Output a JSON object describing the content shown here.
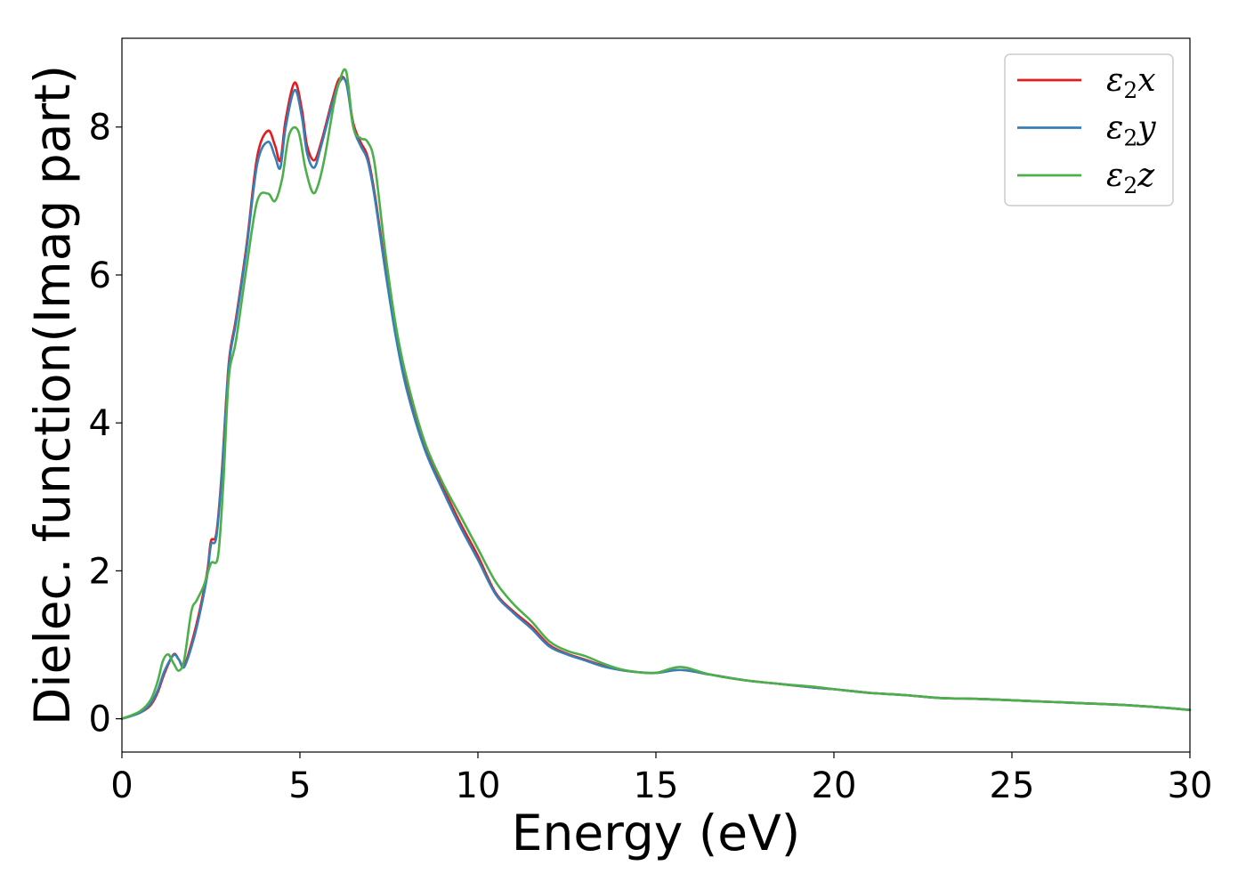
{
  "chart_data": {
    "type": "line",
    "xlabel": "Energy (eV)",
    "ylabel": "Dielec. function(Imag part)",
    "xlim": [
      0,
      30
    ],
    "ylim": [
      -0.45,
      9.2
    ],
    "xticks": [
      0,
      5,
      10,
      15,
      20,
      25,
      30
    ],
    "yticks": [
      0,
      2,
      4,
      6,
      8
    ],
    "xtick_labels": [
      "0",
      "5",
      "10",
      "15",
      "20",
      "25",
      "30"
    ],
    "ytick_labels": [
      "0",
      "2",
      "4",
      "6",
      "8"
    ],
    "grid": false,
    "legend_position": "top-right",
    "series": [
      {
        "name": "ε2x",
        "legend": {
          "base": "ε",
          "sub": "2",
          "tail": "x"
        },
        "color": "#e41a1c",
        "x": [
          0,
          0.5,
          0.8,
          1.0,
          1.2,
          1.45,
          1.6,
          1.75,
          2.0,
          2.2,
          2.4,
          2.5,
          2.65,
          2.8,
          3.0,
          3.2,
          3.5,
          3.8,
          4.1,
          4.3,
          4.45,
          4.6,
          4.85,
          5.05,
          5.2,
          5.4,
          5.6,
          5.9,
          6.1,
          6.3,
          6.5,
          6.7,
          6.9,
          7.1,
          7.4,
          7.7,
          8.0,
          8.5,
          9.0,
          9.5,
          10.0,
          10.5,
          11.0,
          11.5,
          12.0,
          12.5,
          13.0,
          13.5,
          14.0,
          14.5,
          15.0,
          15.7,
          16.5,
          17.5,
          18.5,
          19.5,
          20.0,
          21.0,
          22.0,
          23.0,
          24.0,
          25.0,
          26.0,
          27.0,
          28.0,
          29.0,
          30.0
        ],
        "y": [
          0,
          0.08,
          0.18,
          0.35,
          0.62,
          0.87,
          0.8,
          0.72,
          1.1,
          1.5,
          2.0,
          2.4,
          2.5,
          3.3,
          4.8,
          5.4,
          6.4,
          7.6,
          7.95,
          7.75,
          7.55,
          8.1,
          8.6,
          8.25,
          7.75,
          7.55,
          7.8,
          8.35,
          8.65,
          8.6,
          8.05,
          7.8,
          7.6,
          7.1,
          6.1,
          5.2,
          4.5,
          3.7,
          3.15,
          2.65,
          2.2,
          1.7,
          1.45,
          1.25,
          1.0,
          0.88,
          0.8,
          0.72,
          0.66,
          0.63,
          0.62,
          0.66,
          0.6,
          0.52,
          0.47,
          0.42,
          0.4,
          0.35,
          0.32,
          0.28,
          0.27,
          0.25,
          0.23,
          0.21,
          0.19,
          0.16,
          0.12
        ]
      },
      {
        "name": "ε2y",
        "legend": {
          "base": "ε",
          "sub": "2",
          "tail": "y"
        },
        "color": "#377eb8",
        "x": [
          0,
          0.5,
          0.8,
          1.0,
          1.2,
          1.45,
          1.6,
          1.75,
          2.0,
          2.2,
          2.4,
          2.5,
          2.65,
          2.8,
          3.0,
          3.2,
          3.5,
          3.8,
          4.1,
          4.3,
          4.45,
          4.6,
          4.85,
          5.05,
          5.2,
          5.4,
          5.6,
          5.9,
          6.1,
          6.3,
          6.5,
          6.7,
          6.9,
          7.1,
          7.4,
          7.7,
          8.0,
          8.5,
          9.0,
          9.5,
          10.0,
          10.5,
          11.0,
          11.5,
          12.0,
          12.5,
          13.0,
          13.5,
          14.0,
          14.5,
          15.0,
          15.7,
          16.5,
          17.5,
          18.5,
          19.5,
          20.0,
          21.0,
          22.0,
          23.0,
          24.0,
          25.0,
          26.0,
          27.0,
          28.0,
          29.0,
          30.0
        ],
        "y": [
          0,
          0.08,
          0.2,
          0.38,
          0.65,
          0.86,
          0.8,
          0.7,
          1.05,
          1.45,
          1.95,
          2.35,
          2.45,
          3.25,
          4.75,
          5.35,
          6.35,
          7.5,
          7.8,
          7.6,
          7.45,
          8.0,
          8.5,
          8.15,
          7.65,
          7.45,
          7.75,
          8.3,
          8.6,
          8.6,
          8.0,
          7.75,
          7.55,
          7.05,
          6.05,
          5.15,
          4.45,
          3.65,
          3.1,
          2.6,
          2.15,
          1.68,
          1.43,
          1.22,
          0.98,
          0.87,
          0.79,
          0.71,
          0.66,
          0.63,
          0.62,
          0.66,
          0.6,
          0.52,
          0.47,
          0.42,
          0.4,
          0.35,
          0.32,
          0.28,
          0.27,
          0.25,
          0.23,
          0.21,
          0.19,
          0.16,
          0.12
        ]
      },
      {
        "name": "ε2z",
        "legend": {
          "base": "ε",
          "sub": "2",
          "tail": "z"
        },
        "color": "#4daf4a",
        "x": [
          0,
          0.5,
          0.8,
          1.0,
          1.15,
          1.3,
          1.45,
          1.6,
          1.75,
          1.95,
          2.1,
          2.3,
          2.5,
          2.7,
          2.85,
          3.0,
          3.2,
          3.5,
          3.8,
          4.1,
          4.3,
          4.5,
          4.7,
          4.95,
          5.15,
          5.35,
          5.5,
          5.7,
          5.95,
          6.1,
          6.3,
          6.5,
          6.7,
          6.9,
          7.1,
          7.4,
          7.7,
          8.0,
          8.5,
          9.0,
          9.5,
          10.0,
          10.5,
          11.0,
          11.5,
          12.0,
          12.5,
          13.0,
          13.5,
          14.0,
          14.5,
          15.0,
          15.7,
          16.5,
          17.5,
          18.5,
          19.5,
          20.0,
          21.0,
          22.0,
          23.0,
          24.0,
          25.0,
          26.0,
          27.0,
          28.0,
          29.0,
          30.0
        ],
        "y": [
          0,
          0.1,
          0.25,
          0.5,
          0.78,
          0.87,
          0.75,
          0.65,
          0.8,
          1.45,
          1.6,
          1.8,
          2.1,
          2.2,
          3.2,
          4.6,
          5.1,
          6.1,
          7.0,
          7.1,
          7.0,
          7.3,
          7.9,
          7.95,
          7.45,
          7.12,
          7.2,
          7.6,
          8.3,
          8.6,
          8.75,
          8.0,
          7.85,
          7.8,
          7.5,
          6.3,
          5.3,
          4.6,
          3.75,
          3.2,
          2.75,
          2.3,
          1.85,
          1.55,
          1.32,
          1.05,
          0.92,
          0.85,
          0.75,
          0.67,
          0.63,
          0.62,
          0.7,
          0.6,
          0.52,
          0.47,
          0.43,
          0.4,
          0.35,
          0.32,
          0.28,
          0.27,
          0.25,
          0.23,
          0.21,
          0.19,
          0.16,
          0.12
        ]
      }
    ]
  }
}
